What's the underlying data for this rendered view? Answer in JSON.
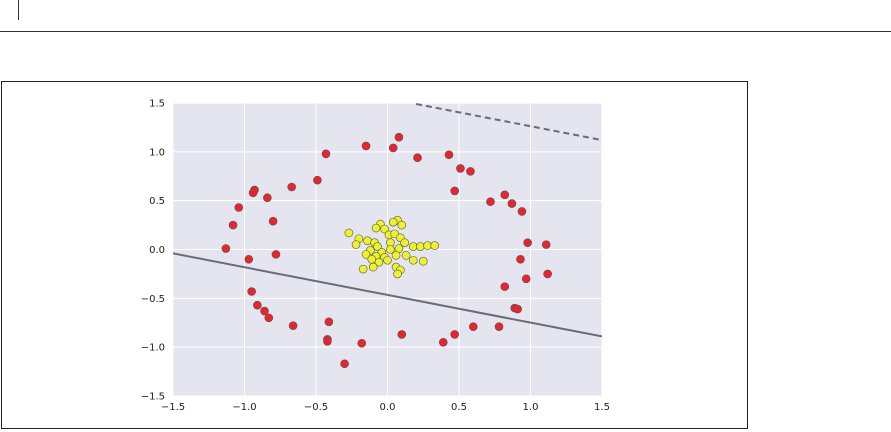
{
  "chart_data": {
    "type": "scatter",
    "title": "",
    "xlabel": "",
    "ylabel": "",
    "xlim": [
      -1.5,
      1.5
    ],
    "ylim": [
      -1.5,
      1.5
    ],
    "xticks": [
      "−1.5",
      "−1.0",
      "−0.5",
      "0.0",
      "0.5",
      "1.0",
      "1.5"
    ],
    "yticks": [
      "1.5",
      "1.0",
      "0.5",
      "0.0",
      "−0.5",
      "−1.0",
      "−1.5"
    ],
    "xtick_values": [
      -1.5,
      -1.0,
      -0.5,
      0.0,
      0.5,
      1.0,
      1.5
    ],
    "ytick_values": [
      1.5,
      1.0,
      0.5,
      0.0,
      -0.5,
      -1.0,
      -1.5
    ],
    "grid": true,
    "legend": "none",
    "colors": {
      "background": "#e5e5ef",
      "grid": "#ffffff",
      "outer_class": "#e8252e",
      "inner_class": "#eef22d",
      "marker_edge": "#555555",
      "boundary": "#6a6a78"
    },
    "series": [
      {
        "color": "#e8252e",
        "points": [
          [
            0.08,
            1.15
          ],
          [
            0.04,
            1.04
          ],
          [
            -0.15,
            1.06
          ],
          [
            -0.43,
            0.98
          ],
          [
            0.21,
            0.94
          ],
          [
            0.43,
            0.97
          ],
          [
            0.51,
            0.83
          ],
          [
            0.58,
            0.8
          ],
          [
            -0.49,
            0.71
          ],
          [
            -0.67,
            0.64
          ],
          [
            -0.93,
            0.61
          ],
          [
            -0.94,
            0.58
          ],
          [
            -0.84,
            0.53
          ],
          [
            0.47,
            0.6
          ],
          [
            0.82,
            0.56
          ],
          [
            0.87,
            0.47
          ],
          [
            0.72,
            0.49
          ],
          [
            0.94,
            0.39
          ],
          [
            -1.04,
            0.43
          ],
          [
            -1.08,
            0.25
          ],
          [
            -0.8,
            0.29
          ],
          [
            0.98,
            0.07
          ],
          [
            1.11,
            0.05
          ],
          [
            -1.13,
            0.01
          ],
          [
            -0.78,
            -0.05
          ],
          [
            -0.97,
            -0.1
          ],
          [
            0.93,
            -0.1
          ],
          [
            0.97,
            -0.3
          ],
          [
            1.12,
            -0.25
          ],
          [
            0.82,
            -0.38
          ],
          [
            -0.95,
            -0.43
          ],
          [
            -0.91,
            -0.57
          ],
          [
            -0.86,
            -0.63
          ],
          [
            -0.83,
            -0.7
          ],
          [
            0.89,
            -0.6
          ],
          [
            0.91,
            -0.61
          ],
          [
            -0.66,
            -0.78
          ],
          [
            -0.41,
            -0.74
          ],
          [
            0.6,
            -0.79
          ],
          [
            0.78,
            -0.79
          ],
          [
            0.1,
            -0.87
          ],
          [
            0.47,
            -0.87
          ],
          [
            -0.42,
            -0.92
          ],
          [
            -0.42,
            -0.94
          ],
          [
            0.39,
            -0.95
          ],
          [
            -0.18,
            -0.96
          ],
          [
            -0.3,
            -1.17
          ]
        ]
      },
      {
        "color": "#eef22d",
        "points": [
          [
            0.07,
            0.3
          ],
          [
            0.04,
            0.28
          ],
          [
            -0.05,
            0.26
          ],
          [
            0.1,
            0.25
          ],
          [
            -0.08,
            0.22
          ],
          [
            -0.02,
            0.21
          ],
          [
            0.01,
            0.15
          ],
          [
            0.05,
            0.16
          ],
          [
            0.09,
            0.12
          ],
          [
            -0.27,
            0.17
          ],
          [
            -0.2,
            0.11
          ],
          [
            -0.14,
            0.09
          ],
          [
            -0.22,
            0.05
          ],
          [
            -0.09,
            0.07
          ],
          [
            0.02,
            0.07
          ],
          [
            0.12,
            0.07
          ],
          [
            0.18,
            0.03
          ],
          [
            0.23,
            0.03
          ],
          [
            0.28,
            0.04
          ],
          [
            0.33,
            0.04
          ],
          [
            -0.07,
            0.03
          ],
          [
            -0.12,
            -0.01
          ],
          [
            0.02,
            0.0
          ],
          [
            0.08,
            0.01
          ],
          [
            -0.04,
            -0.03
          ],
          [
            -0.15,
            -0.05
          ],
          [
            -0.08,
            -0.07
          ],
          [
            -0.02,
            -0.08
          ],
          [
            0.06,
            -0.06
          ],
          [
            0.13,
            -0.06
          ],
          [
            -0.11,
            -0.1
          ],
          [
            -0.06,
            -0.13
          ],
          [
            0.0,
            -0.11
          ],
          [
            0.18,
            -0.11
          ],
          [
            0.25,
            -0.12
          ],
          [
            -0.1,
            -0.18
          ],
          [
            0.06,
            -0.18
          ],
          [
            0.09,
            -0.21
          ],
          [
            0.07,
            -0.25
          ],
          [
            -0.17,
            -0.2
          ]
        ]
      }
    ],
    "lines": [
      {
        "style": "solid",
        "x": [
          -1.5,
          1.5
        ],
        "y": [
          -0.04,
          -0.89
        ]
      },
      {
        "style": "dashed",
        "x": [
          0.2,
          1.5
        ],
        "y": [
          1.49,
          1.12
        ]
      }
    ]
  }
}
